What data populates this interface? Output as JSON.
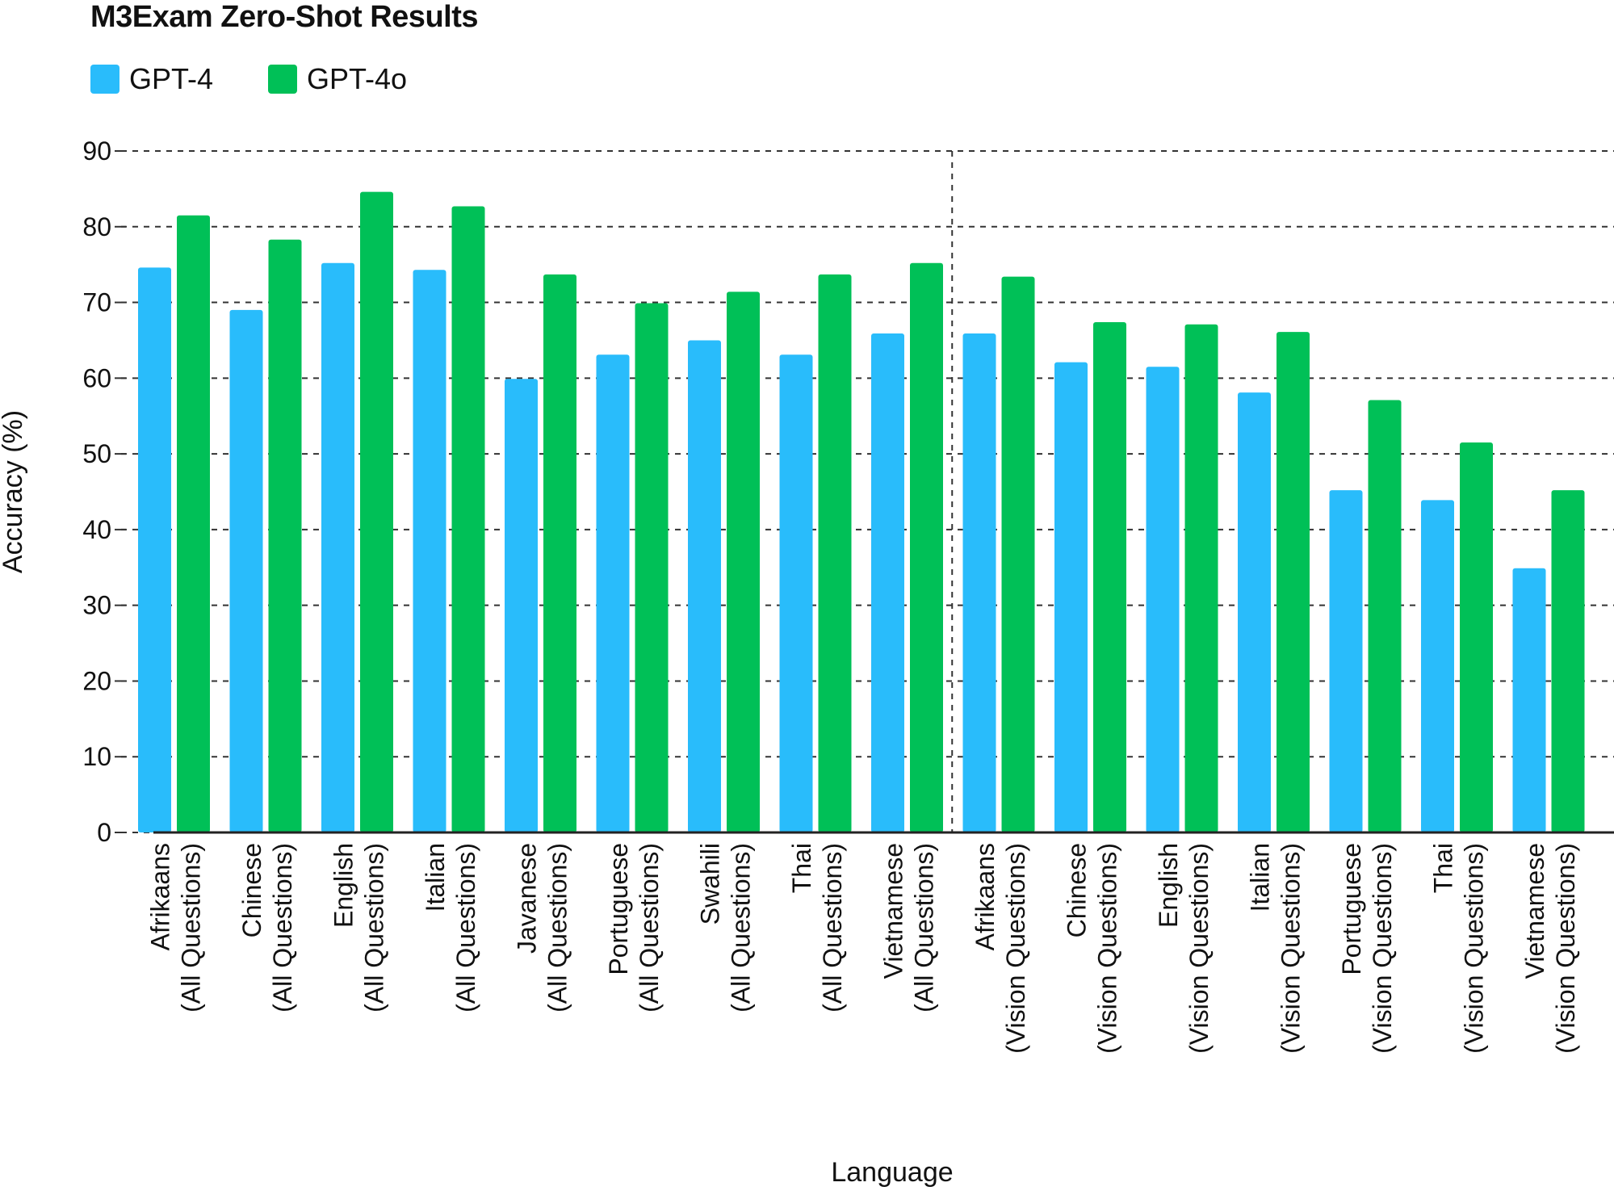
{
  "chart_data": {
    "type": "bar",
    "title": "M3Exam Zero-Shot Results",
    "xlabel": "Language",
    "ylabel": "Accuracy (%)",
    "ylim": [
      0,
      90
    ],
    "yticks": [
      0,
      10,
      20,
      30,
      40,
      50,
      60,
      70,
      80,
      90
    ],
    "grid": true,
    "legend_position": "top-left",
    "categories": [
      [
        "Afrikaans",
        "(All Questions)"
      ],
      [
        "Chinese",
        "(All Questions)"
      ],
      [
        "English",
        "(All Questions)"
      ],
      [
        "Italian",
        "(All Questions)"
      ],
      [
        "Javanese",
        "(All Questions)"
      ],
      [
        "Portuguese",
        "(All Questions)"
      ],
      [
        "Swahili",
        "(All Questions)"
      ],
      [
        "Thai",
        "(All Questions)"
      ],
      [
        "Vietnamese",
        "(All Questions)"
      ],
      [
        "Afrikaans",
        "(Vision Questions)"
      ],
      [
        "Chinese",
        "(Vision Questions)"
      ],
      [
        "English",
        "(Vision Questions)"
      ],
      [
        "Italian",
        "(Vision Questions)"
      ],
      [
        "Portuguese",
        "(Vision Questions)"
      ],
      [
        "Thai",
        "(Vision Questions)"
      ],
      [
        "Vietnamese",
        "(Vision Questions)"
      ]
    ],
    "series": [
      {
        "name": "GPT-4",
        "color": "#29BCFB",
        "values": [
          74.6,
          69.0,
          75.2,
          74.3,
          59.9,
          63.1,
          65.0,
          63.1,
          65.9,
          65.9,
          62.1,
          61.5,
          58.1,
          45.2,
          43.9,
          34.9
        ]
      },
      {
        "name": "GPT-4o",
        "color": "#00C057",
        "values": [
          81.5,
          78.3,
          84.6,
          82.7,
          73.7,
          69.9,
          71.4,
          73.7,
          75.2,
          73.4,
          67.4,
          67.1,
          66.1,
          57.1,
          51.5,
          45.2
        ]
      }
    ]
  }
}
